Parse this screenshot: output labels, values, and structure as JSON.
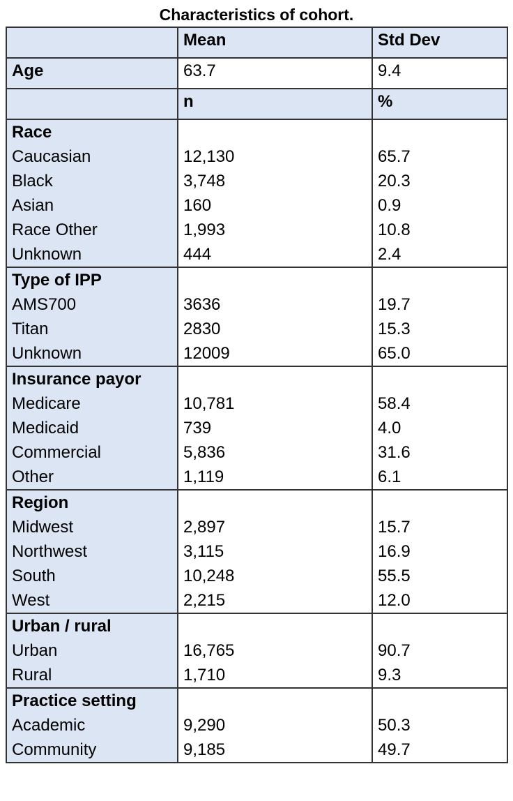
{
  "title": "Characteristics of  cohort.",
  "header": {
    "blank": "",
    "mean": "Mean",
    "std": "Std Dev"
  },
  "age": {
    "label": "Age",
    "mean": "63.7",
    "std": "9.4"
  },
  "subheader": {
    "blank": "",
    "n": "n",
    "pct": "%"
  },
  "groups": [
    {
      "title": "Race",
      "rows": [
        {
          "label": "Caucasian",
          "n": "12,130",
          "pct": "65.7"
        },
        {
          "label": "Black",
          "n": "3,748",
          "pct": "20.3"
        },
        {
          "label": "Asian",
          "n": "160",
          "pct": "0.9"
        },
        {
          "label": "Race Other",
          "n": "1,993",
          "pct": "10.8"
        },
        {
          "label": "Unknown",
          "n": "444",
          "pct": "2.4"
        }
      ]
    },
    {
      "title": "Type of IPP",
      "rows": [
        {
          "label": "AMS700",
          "n": "3636",
          "pct": "19.7"
        },
        {
          "label": "Titan",
          "n": "2830",
          "pct": "15.3"
        },
        {
          "label": "Unknown",
          "n": "12009",
          "pct": "65.0"
        }
      ]
    },
    {
      "title": "Insurance payor",
      "rows": [
        {
          "label": "Medicare",
          "n": "10,781",
          "pct": "58.4"
        },
        {
          "label": "Medicaid",
          "n": "739",
          "pct": "4.0"
        },
        {
          "label": "Commercial",
          "n": "5,836",
          "pct": "31.6"
        },
        {
          "label": "Other",
          "n": "1,119",
          "pct": "6.1"
        }
      ]
    },
    {
      "title": "Region",
      "rows": [
        {
          "label": "Midwest",
          "n": "2,897",
          "pct": "15.7"
        },
        {
          "label": "Northwest",
          "n": "3,115",
          "pct": "16.9"
        },
        {
          "label": "South",
          "n": "10,248",
          "pct": "55.5"
        },
        {
          "label": "West",
          "n": "2,215",
          "pct": "12.0"
        }
      ]
    },
    {
      "title": "Urban / rural",
      "rows": [
        {
          "label": "Urban",
          "n": "16,765",
          "pct": "90.7"
        },
        {
          "label": "Rural",
          "n": "1,710",
          "pct": "9.3"
        }
      ]
    },
    {
      "title": "Practice setting",
      "rows": [
        {
          "label": "Academic",
          "n": "9,290",
          "pct": "50.3"
        },
        {
          "label": "Community",
          "n": "9,185",
          "pct": "49.7"
        }
      ]
    }
  ]
}
